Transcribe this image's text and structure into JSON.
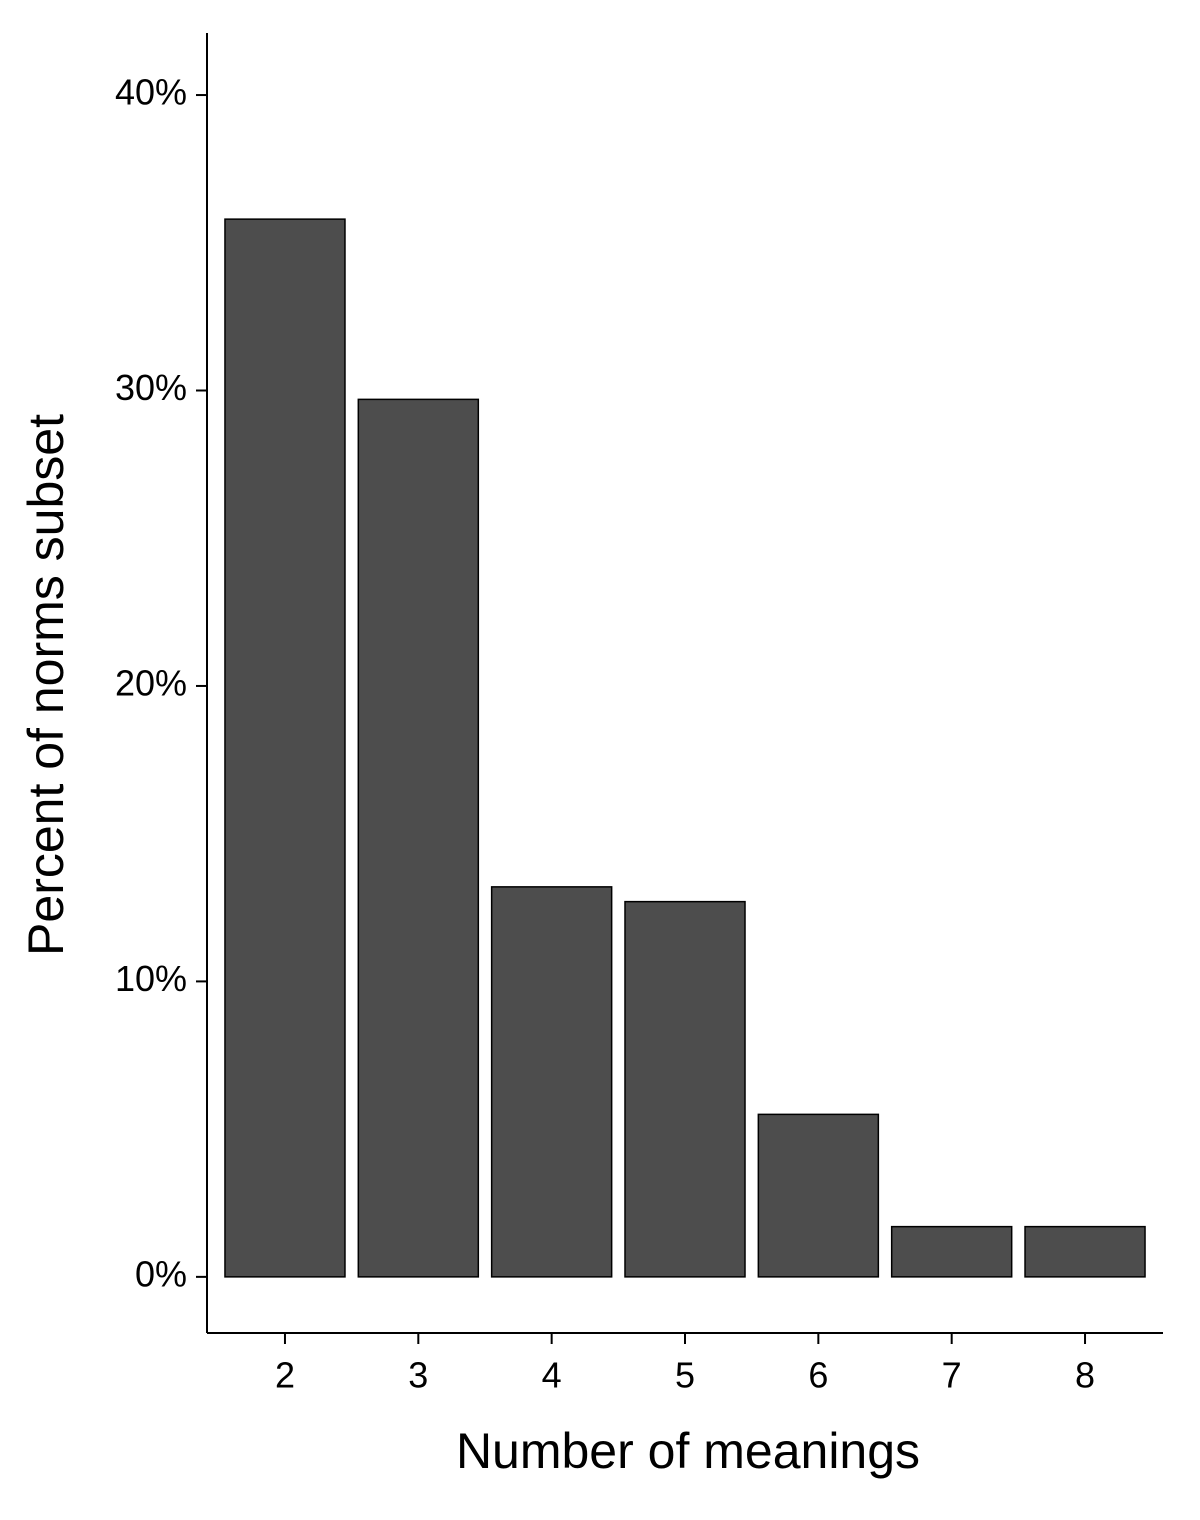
{
  "chart_data": {
    "type": "bar",
    "x_label": "Number of meanings",
    "y_label": "Percent of norms subset",
    "categories": [
      "2",
      "3",
      "4",
      "5",
      "6",
      "7",
      "8"
    ],
    "values": [
      35.8,
      29.7,
      13.2,
      12.7,
      5.5,
      1.7,
      1.7
    ],
    "color": "#4d4d4d",
    "ylim": [
      -1.9,
      42.1
    ],
    "yticks": [
      {
        "value": 0,
        "label": "0%"
      },
      {
        "value": 10,
        "label": "10%"
      },
      {
        "value": 20,
        "label": "20%"
      },
      {
        "value": 30,
        "label": "30%"
      },
      {
        "value": 40,
        "label": "40%"
      }
    ],
    "grid": false
  }
}
